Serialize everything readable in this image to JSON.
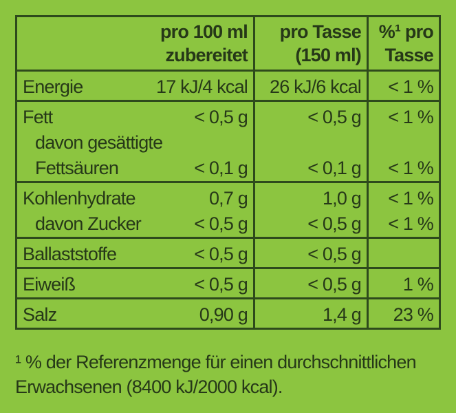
{
  "table": {
    "header": {
      "per_100ml": [
        "pro 100 ml",
        "zubereitet"
      ],
      "per_cup": [
        "pro Tasse",
        "(150 ml)"
      ],
      "percent": [
        "%¹ pro",
        "Tasse"
      ]
    },
    "rows": [
      [
        {
          "label": "Energie",
          "per_100ml": "17 kJ/4 kcal",
          "per_cup": "26 kJ/6 kcal",
          "percent": "< 1 %"
        }
      ],
      [
        {
          "label": "Fett",
          "per_100ml": "< 0,5 g",
          "per_cup": "< 0,5 g",
          "percent": "< 1 %"
        },
        {
          "label": "davon gesättigte"
        },
        {
          "label": "Fettsäuren",
          "per_100ml": "< 0,1 g",
          "per_cup": "< 0,1 g",
          "percent": "< 1 %"
        }
      ],
      [
        {
          "label": "Kohlenhydrate",
          "per_100ml": "0,7 g",
          "per_cup": "1,0 g",
          "percent": "< 1 %"
        },
        {
          "label": "davon Zucker",
          "per_100ml": "< 0,5 g",
          "per_cup": "< 0,5 g",
          "percent": "< 1 %"
        }
      ],
      [
        {
          "label": "Ballaststoffe",
          "per_100ml": "< 0,5 g",
          "per_cup": "< 0,5 g"
        }
      ],
      [
        {
          "label": "Eiweiß",
          "per_100ml": "< 0,5 g",
          "per_cup": "< 0,5 g",
          "percent": "1 %"
        }
      ],
      [
        {
          "label": "Salz",
          "per_100ml": "0,90 g",
          "per_cup": "1,4 g",
          "percent": "23 %"
        }
      ]
    ]
  },
  "footnote": [
    "¹ % der Referenzmenge für einen durchschnittlichen",
    "Erwachsenen (8400 kJ/2000 kcal)."
  ]
}
